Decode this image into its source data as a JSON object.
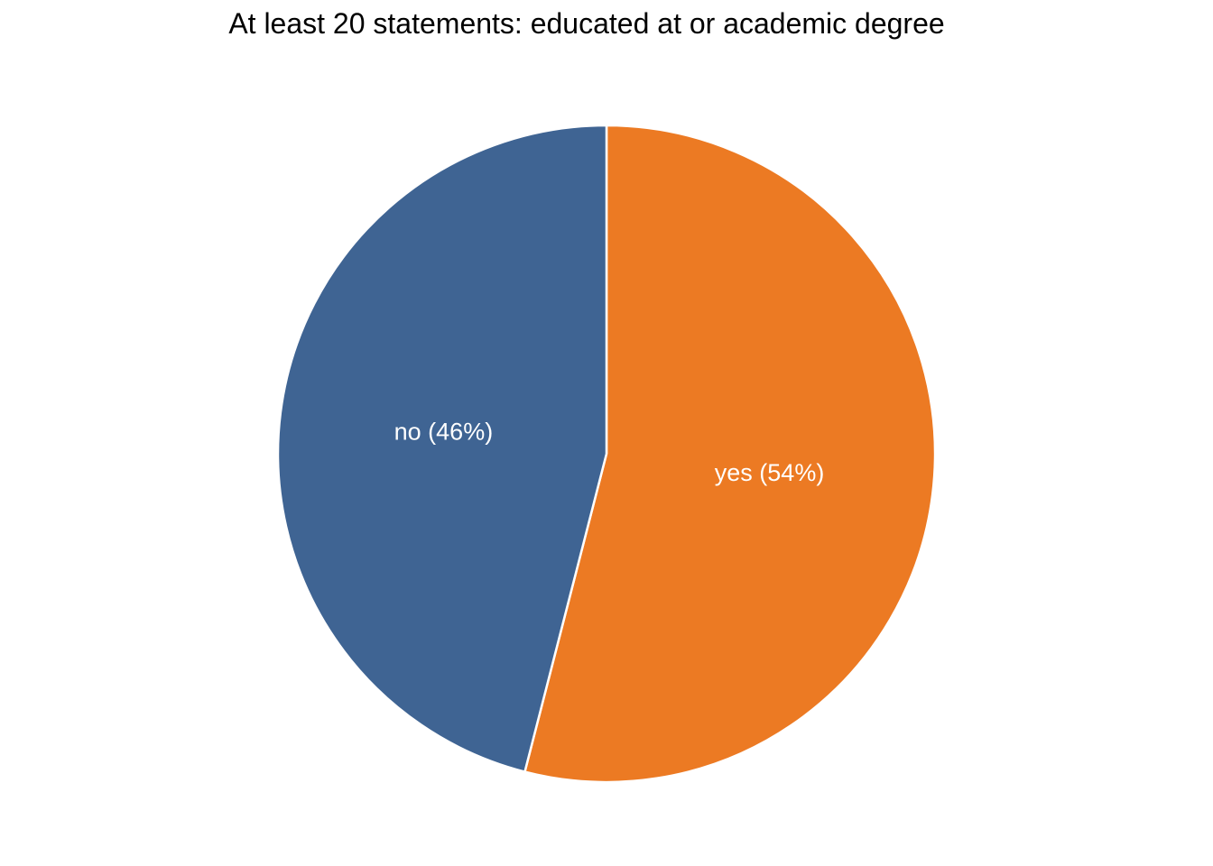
{
  "chart_data": {
    "type": "pie",
    "title": "At least 20 statements: educated at or academic degree",
    "slices": [
      {
        "label": "yes",
        "value": 54,
        "display": "yes (54%)",
        "color": "#ec7a23"
      },
      {
        "label": "no",
        "value": 46,
        "display": "no (46%)",
        "color": "#3f6493"
      }
    ],
    "start": "12 o'clock",
    "direction": "clockwise",
    "legend": "none"
  }
}
